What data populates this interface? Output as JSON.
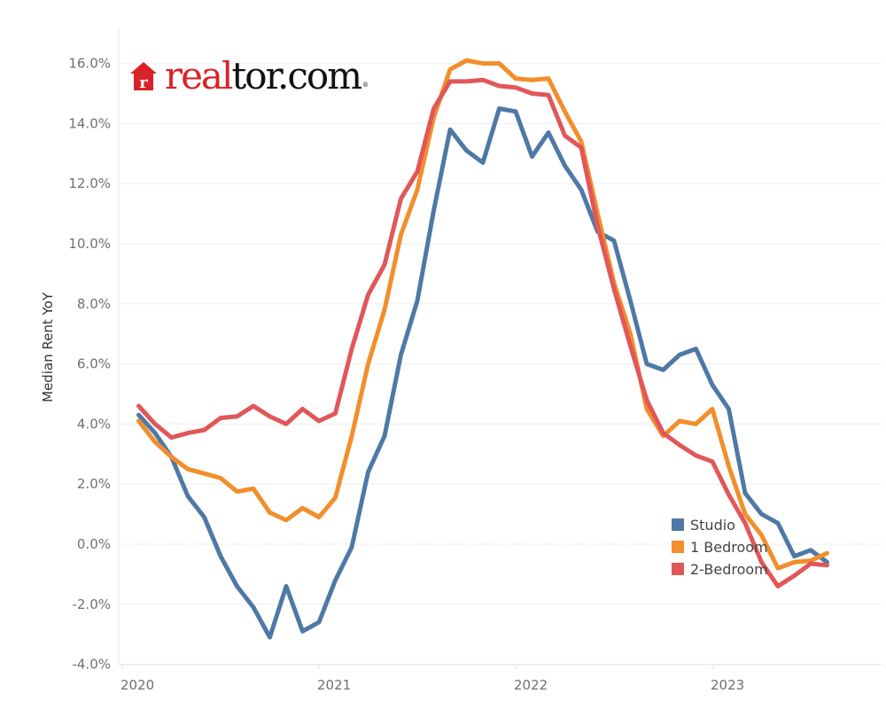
{
  "brand": {
    "logo_red": "real",
    "logo_black": "tor.com",
    "logo_mark": "r",
    "registered": "®",
    "color_red": "#d92228"
  },
  "chart_data": {
    "type": "line",
    "title": "",
    "xlabel": "",
    "ylabel": "Median Rent YoY",
    "ylim": [
      -4.0,
      16.5
    ],
    "yticks": [
      -4.0,
      -2.0,
      0.0,
      2.0,
      4.0,
      6.0,
      8.0,
      10.0,
      12.0,
      14.0,
      16.0
    ],
    "ytick_labels": [
      "-4.0%",
      "-2.0%",
      "0.0%",
      "2.0%",
      "4.0%",
      "6.0%",
      "8.0%",
      "10.0%",
      "12.0%",
      "14.0%",
      "16.0%"
    ],
    "xticks": [
      "2020",
      "2021",
      "2022",
      "2023"
    ],
    "grid": true,
    "legend_position": "bottom-right",
    "x": [
      "2020-02",
      "2020-03",
      "2020-04",
      "2020-05",
      "2020-06",
      "2020-07",
      "2020-08",
      "2020-09",
      "2020-10",
      "2020-11",
      "2020-12",
      "2021-01",
      "2021-02",
      "2021-03",
      "2021-04",
      "2021-05",
      "2021-06",
      "2021-07",
      "2021-08",
      "2021-09",
      "2021-10",
      "2021-11",
      "2021-12",
      "2022-01",
      "2022-02",
      "2022-03",
      "2022-04",
      "2022-05",
      "2022-06",
      "2022-07",
      "2022-08",
      "2022-09",
      "2022-10",
      "2022-11",
      "2022-12",
      "2023-01",
      "2023-02",
      "2023-03",
      "2023-04",
      "2023-05",
      "2023-06",
      "2023-07",
      "2023-08"
    ],
    "series": [
      {
        "name": "Studio",
        "color": "#4e79a7",
        "values": [
          4.3,
          3.7,
          2.9,
          1.6,
          0.9,
          -0.4,
          -1.4,
          -2.1,
          -3.1,
          -1.4,
          -2.9,
          -2.6,
          -1.2,
          -0.1,
          2.4,
          3.6,
          6.3,
          8.1,
          11.1,
          13.8,
          13.1,
          12.7,
          14.5,
          14.4,
          12.9,
          13.7,
          12.6,
          11.8,
          10.4,
          10.1,
          8.1,
          6.0,
          5.8,
          6.3,
          6.5,
          5.3,
          4.5,
          1.7,
          1.0,
          0.7,
          -0.4,
          -0.2,
          -0.6
        ]
      },
      {
        "name": "1 Bedroom",
        "color": "#f28e2b",
        "values": [
          4.1,
          3.4,
          2.9,
          2.5,
          2.35,
          2.2,
          1.75,
          1.85,
          1.05,
          0.8,
          1.2,
          0.9,
          1.55,
          3.6,
          6.0,
          7.8,
          10.3,
          11.8,
          14.2,
          15.8,
          16.1,
          16.0,
          16.0,
          15.5,
          15.45,
          15.5,
          14.4,
          13.4,
          11.0,
          8.7,
          7.0,
          4.5,
          3.6,
          4.1,
          4.0,
          4.5,
          2.6,
          1.0,
          0.3,
          -0.8,
          -0.6,
          -0.55,
          -0.3
        ]
      },
      {
        "name": "2-Bedroom",
        "color": "#e15759",
        "values": [
          4.6,
          4.0,
          3.55,
          3.7,
          3.8,
          4.2,
          4.25,
          4.6,
          4.25,
          4.0,
          4.5,
          4.1,
          4.35,
          6.5,
          8.3,
          9.3,
          11.5,
          12.4,
          14.5,
          15.4,
          15.4,
          15.45,
          15.25,
          15.2,
          15.0,
          14.95,
          13.6,
          13.2,
          10.6,
          8.5,
          6.6,
          4.8,
          3.7,
          3.3,
          2.95,
          2.75,
          1.65,
          0.7,
          -0.6,
          -1.4,
          -1.05,
          -0.65,
          -0.7
        ]
      }
    ]
  }
}
